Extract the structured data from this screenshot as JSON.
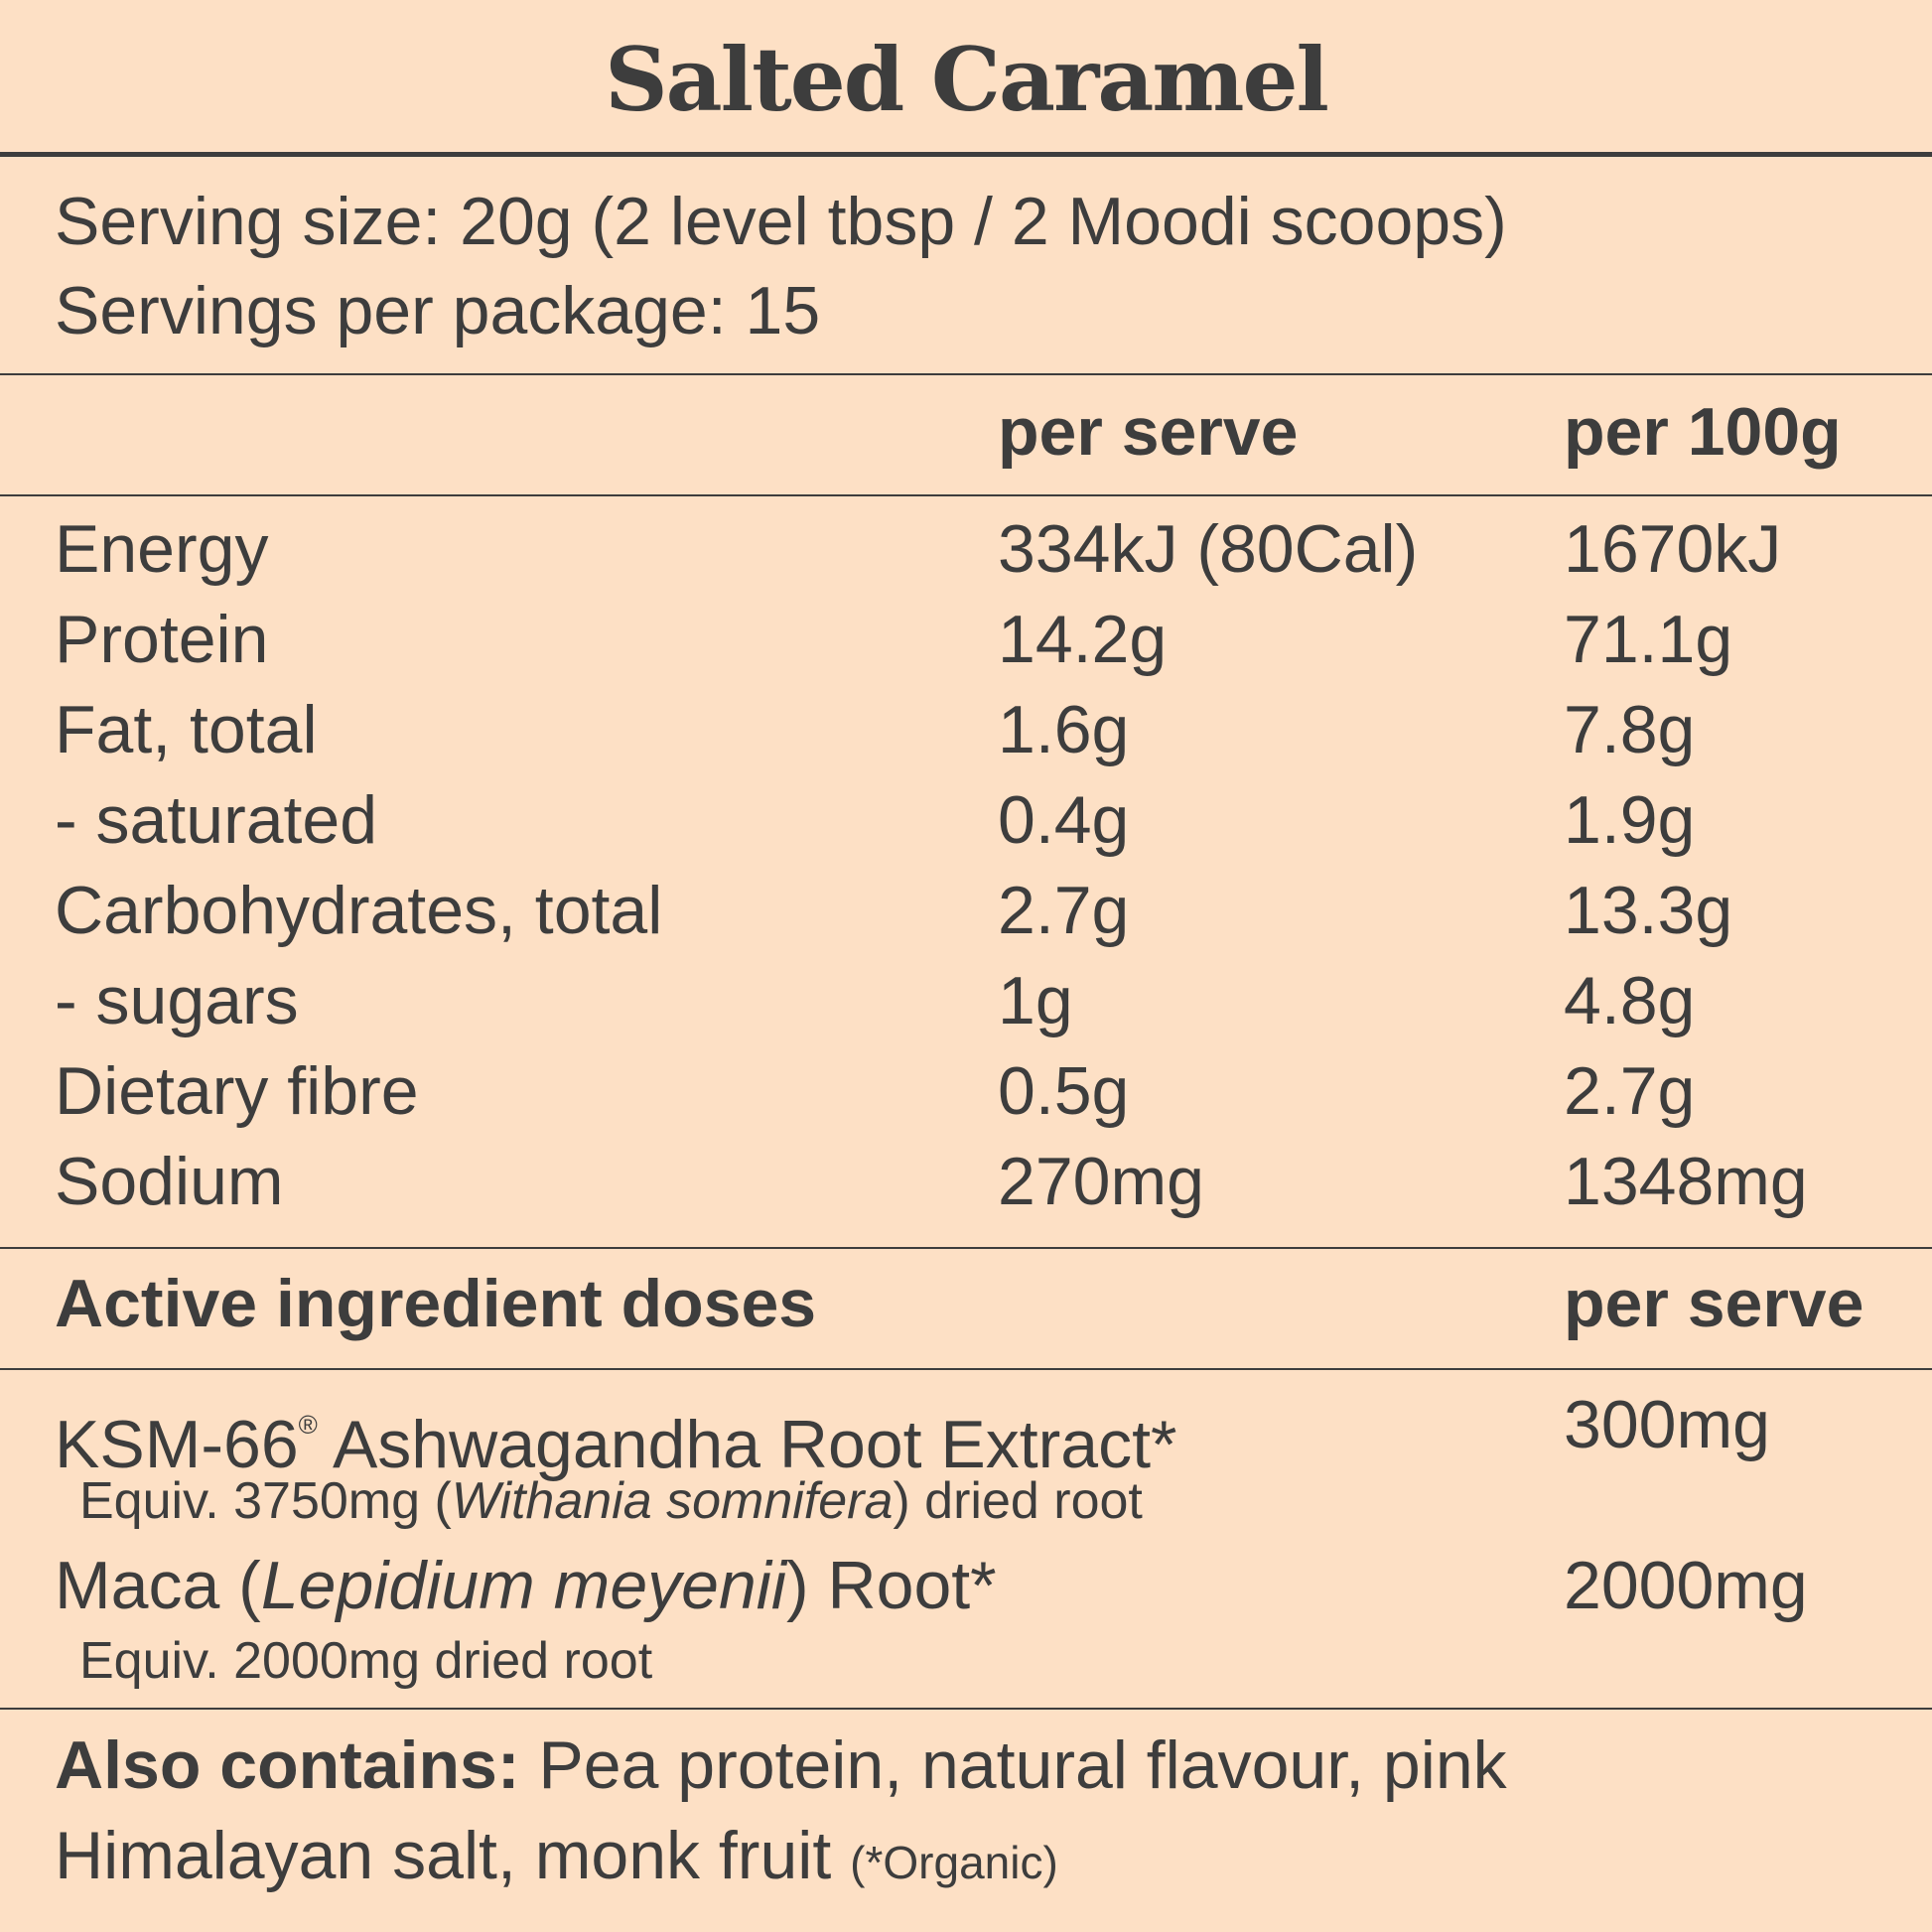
{
  "title": "Salted Caramel",
  "serving": {
    "size": "Serving size: 20g (2 level tbsp / 2 Moodi scoops)",
    "per_package": "Servings per package: 15"
  },
  "nutrition": {
    "headers": {
      "col2": "per serve",
      "col3": "per 100g"
    },
    "rows": [
      {
        "label": "Energy",
        "per_serve": "334kJ (80Cal)",
        "per_100g": "1670kJ"
      },
      {
        "label": "Protein",
        "per_serve": "14.2g",
        "per_100g": "71.1g"
      },
      {
        "label": "Fat, total",
        "per_serve": "1.6g",
        "per_100g": "7.8g"
      },
      {
        "label": "- saturated",
        "per_serve": "0.4g",
        "per_100g": "1.9g"
      },
      {
        "label": "Carbohydrates, total",
        "per_serve": "2.7g",
        "per_100g": "13.3g"
      },
      {
        "label": "- sugars",
        "per_serve": "1g",
        "per_100g": "4.8g"
      },
      {
        "label": "Dietary fibre",
        "per_serve": "0.5g",
        "per_100g": "2.7g"
      },
      {
        "label": "Sodium",
        "per_serve": "270mg",
        "per_100g": "1348mg"
      }
    ]
  },
  "actives": {
    "heading": "Active ingredient doses",
    "col_header": "per serve",
    "items": [
      {
        "name": "KSM-66",
        "reg_mark": "®",
        "name_rest": " Ashwagandha Root Extract*",
        "equiv_pre": "Equiv. 3750mg (",
        "equiv_italic": "Withania somnifera",
        "equiv_post": ") dried root",
        "dose": "300mg"
      },
      {
        "name_pre": "Maca (",
        "name_italic": "Lepidium meyenii",
        "name_post": ") Root*",
        "equiv": "Equiv. 2000mg dried root",
        "dose": "2000mg"
      }
    ]
  },
  "also_contains": {
    "label": "Also contains:",
    "line1": " Pea protein, natural flavour, pink",
    "line2": "Himalayan salt, monk fruit ",
    "note": "(*Organic)"
  }
}
